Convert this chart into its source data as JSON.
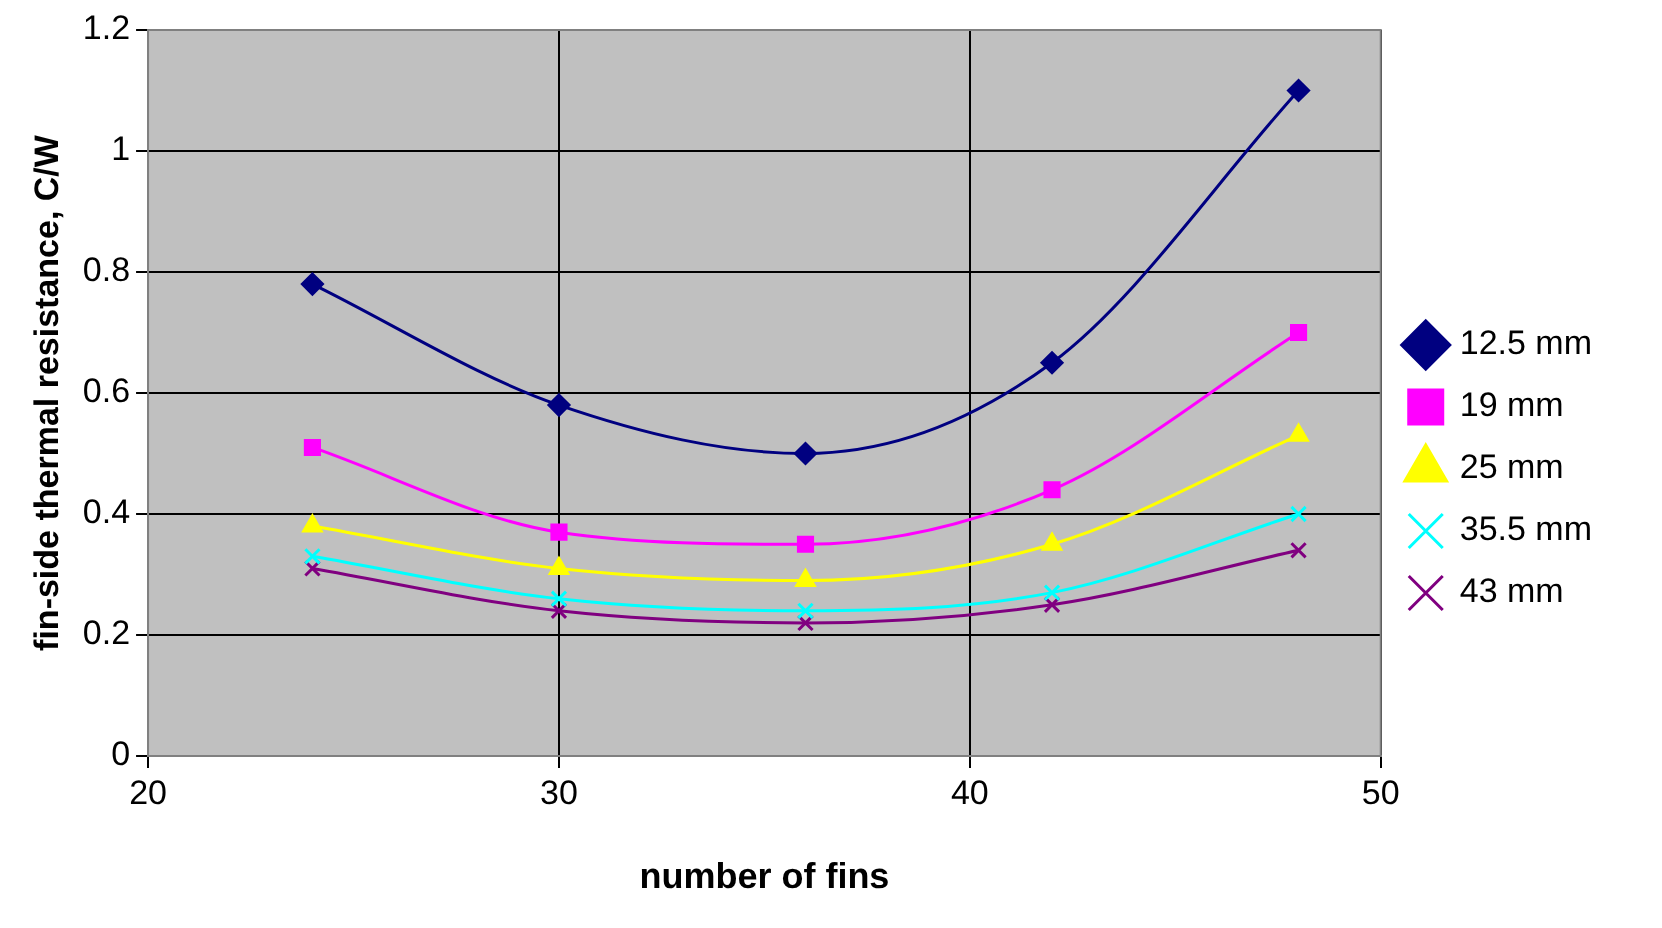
{
  "chart_data": {
    "type": "line",
    "xlabel": "number of fins",
    "ylabel": "fin-side thermal resistance, C/W",
    "x": [
      24,
      30,
      36,
      42,
      48
    ],
    "xlim": [
      20,
      50
    ],
    "xticks": [
      20,
      30,
      40,
      50
    ],
    "ylim": [
      0,
      1.2
    ],
    "yticks": [
      0,
      0.2,
      0.4,
      0.6,
      0.8,
      1,
      1.2
    ],
    "grid": true,
    "legend": "right",
    "series": [
      {
        "name": "12.5 mm",
        "color": "#000080",
        "marker": "diamond",
        "values": [
          0.78,
          0.58,
          0.5,
          0.65,
          1.1
        ]
      },
      {
        "name": "19 mm",
        "color": "#ff00ff",
        "marker": "square",
        "values": [
          0.51,
          0.37,
          0.35,
          0.44,
          0.7
        ]
      },
      {
        "name": "25 mm",
        "color": "#ffff00",
        "marker": "triangle",
        "values": [
          0.38,
          0.31,
          0.29,
          0.35,
          0.53
        ]
      },
      {
        "name": "35.5 mm",
        "color": "#00ffff",
        "marker": "cross",
        "values": [
          0.33,
          0.26,
          0.24,
          0.27,
          0.4
        ]
      },
      {
        "name": "43 mm",
        "color": "#800080",
        "marker": "cross",
        "values": [
          0.31,
          0.24,
          0.22,
          0.25,
          0.34
        ]
      }
    ]
  }
}
